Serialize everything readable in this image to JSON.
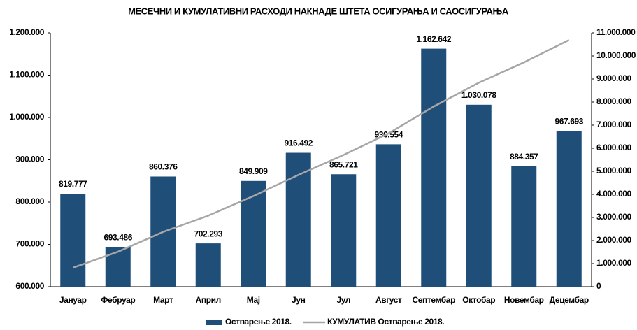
{
  "chart_data": {
    "type": "bar",
    "title": "МЕСЕЧНИ И КУМУЛАТИВНИ РАСХОДИ НАКНАДЕ ШТЕТА ОСИГУРАЊА И САОСИГУРАЊА",
    "categories": [
      "Јануар",
      "Фебруар",
      "Март",
      "Април",
      "Мај",
      "Јун",
      "Јул",
      "Август",
      "Септембар",
      "Октобар",
      "Новембар",
      "Децембар"
    ],
    "series": [
      {
        "name": "Остварење 2018.",
        "type": "bar",
        "color": "#1f4e79",
        "values": [
          819777,
          693486,
          860376,
          702293,
          849909,
          916492,
          865721,
          936554,
          1162642,
          1030078,
          884357,
          967693
        ],
        "value_labels": [
          "819.777",
          "693.486",
          "860.376",
          "702.293",
          "849.909",
          "916.492",
          "865.721",
          "936.554",
          "1.162.642",
          "1.030.078",
          "884.357",
          "967.693"
        ]
      },
      {
        "name": "КУМУЛАТИВ Остварење 2018.",
        "type": "line",
        "color": "#a6a6a6",
        "axis": "y2",
        "values": [
          819777,
          1513263,
          2373639,
          3075932,
          3925841,
          4842333,
          5708054,
          6644608,
          7807250,
          8837328,
          9721685,
          10689378
        ]
      }
    ],
    "ylim": [
      600000,
      1200000
    ],
    "yticks": [
      {
        "value": 600000,
        "label": "600.000"
      },
      {
        "value": 700000,
        "label": "700.000"
      },
      {
        "value": 800000,
        "label": "800.000"
      },
      {
        "value": 900000,
        "label": "900.000"
      },
      {
        "value": 1000000,
        "label": "1.000.000"
      },
      {
        "value": 1100000,
        "label": "1.100.000"
      },
      {
        "value": 1200000,
        "label": "1.200.000"
      }
    ],
    "y2lim": [
      0,
      11000000
    ],
    "y2ticks": [
      0,
      {
        "value": 1000000,
        "label": "1.000.000"
      },
      {
        "value": 2000000,
        "label": "2.000.000"
      },
      {
        "value": 3000000,
        "label": "3.000.000"
      },
      {
        "value": 4000000,
        "label": "4.000.000"
      },
      {
        "value": 5000000,
        "label": "5.000.000"
      },
      {
        "value": 6000000,
        "label": "6.000.000"
      },
      {
        "value": 7000000,
        "label": "7.000.000"
      },
      {
        "value": 8000000,
        "label": "8.000.000"
      },
      {
        "value": 9000000,
        "label": "9.000.000"
      },
      {
        "value": 10000000,
        "label": "10.000.000"
      },
      {
        "value": 11000000,
        "label": "11.000.000"
      }
    ],
    "grid": false,
    "legend": "bottom"
  }
}
